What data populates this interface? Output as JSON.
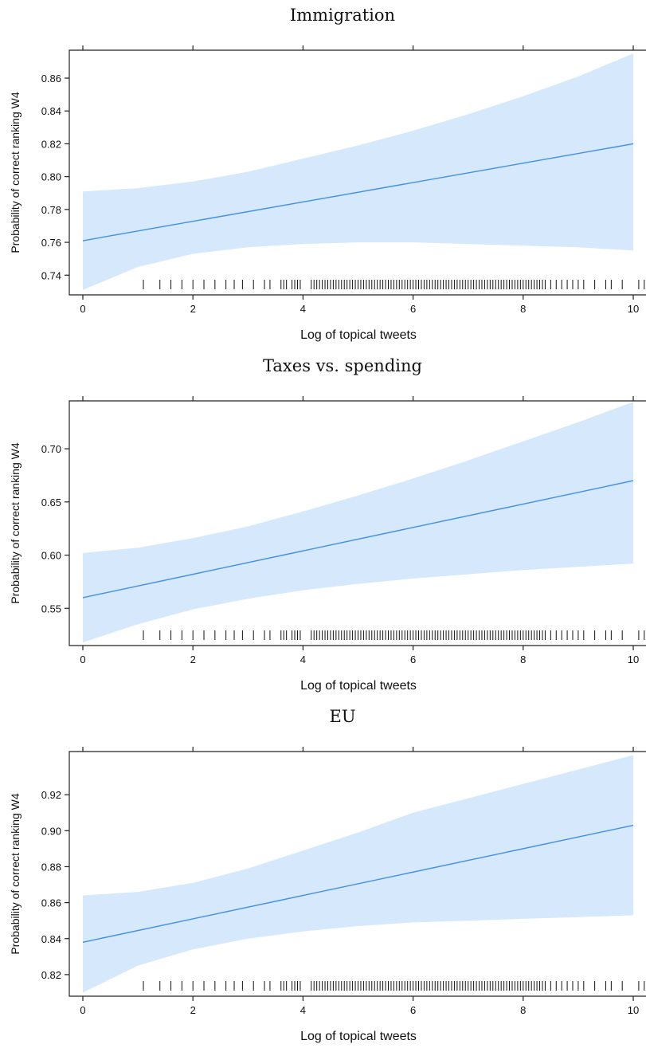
{
  "chart_data": [
    {
      "type": "line",
      "title": "Immigration",
      "xlabel": "Log of topical tweets",
      "ylabel": "Probability of correct ranking W4",
      "xlim": [
        0,
        10
      ],
      "ylim": [
        0.728,
        0.877
      ],
      "xticks": [
        0,
        2,
        4,
        6,
        8,
        10
      ],
      "yticks": [
        0.74,
        0.76,
        0.78,
        0.8,
        0.82,
        0.84,
        0.86
      ],
      "ytick_labels": [
        "0.74",
        "0.76",
        "0.78",
        "0.80",
        "0.82",
        "0.84",
        "0.86"
      ],
      "fit": {
        "x": [
          0,
          10
        ],
        "y": [
          0.761,
          0.82
        ]
      },
      "band": {
        "x": [
          0,
          1,
          2,
          3,
          4,
          5,
          6,
          7,
          8,
          9,
          10
        ],
        "lower": [
          0.731,
          0.745,
          0.753,
          0.757,
          0.759,
          0.76,
          0.76,
          0.759,
          0.758,
          0.757,
          0.755
        ],
        "upper": [
          0.791,
          0.793,
          0.797,
          0.803,
          0.811,
          0.819,
          0.828,
          0.838,
          0.849,
          0.861,
          0.875
        ]
      },
      "rug": [
        1.1,
        1.4,
        1.6,
        1.8,
        2.0,
        2.2,
        2.4,
        2.6,
        2.75,
        2.9,
        3.1,
        3.3,
        3.4,
        3.6,
        3.65,
        3.7,
        3.8,
        3.85,
        3.9,
        3.95,
        4.15,
        4.2,
        4.25,
        4.3,
        4.35,
        4.4,
        4.45,
        4.5,
        4.55,
        4.6,
        4.65,
        4.7,
        4.75,
        4.8,
        4.85,
        4.9,
        4.95,
        5.0,
        5.05,
        5.1,
        5.15,
        5.2,
        5.25,
        5.3,
        5.35,
        5.4,
        5.45,
        5.5,
        5.55,
        5.6,
        5.65,
        5.7,
        5.75,
        5.8,
        5.85,
        5.9,
        5.95,
        6.0,
        6.05,
        6.1,
        6.15,
        6.2,
        6.25,
        6.3,
        6.35,
        6.4,
        6.45,
        6.5,
        6.55,
        6.6,
        6.65,
        6.7,
        6.75,
        6.8,
        6.85,
        6.9,
        6.95,
        7.0,
        7.05,
        7.1,
        7.15,
        7.2,
        7.25,
        7.3,
        7.35,
        7.4,
        7.45,
        7.5,
        7.55,
        7.6,
        7.65,
        7.7,
        7.75,
        7.8,
        7.85,
        7.9,
        7.95,
        8.0,
        8.05,
        8.1,
        8.15,
        8.2,
        8.25,
        8.3,
        8.35,
        8.4,
        8.5,
        8.6,
        8.7,
        8.8,
        8.9,
        9.0,
        9.1,
        9.3,
        9.5,
        9.6,
        9.8,
        10.1,
        10.2
      ]
    },
    {
      "type": "line",
      "title": "Taxes vs. spending",
      "xlabel": "Log of topical tweets",
      "ylabel": "Probability of correct ranking W4",
      "xlim": [
        0,
        10
      ],
      "ylim": [
        0.515,
        0.745
      ],
      "xticks": [
        0,
        2,
        4,
        6,
        8,
        10
      ],
      "yticks": [
        0.55,
        0.6,
        0.65,
        0.7
      ],
      "ytick_labels": [
        "0.55",
        "0.60",
        "0.65",
        "0.70"
      ],
      "fit": {
        "x": [
          0,
          10
        ],
        "y": [
          0.56,
          0.67
        ]
      },
      "band": {
        "x": [
          0,
          1,
          2,
          3,
          4,
          5,
          6,
          7,
          8,
          9,
          10
        ],
        "lower": [
          0.518,
          0.535,
          0.549,
          0.559,
          0.567,
          0.573,
          0.578,
          0.582,
          0.586,
          0.589,
          0.592
        ],
        "upper": [
          0.602,
          0.607,
          0.616,
          0.627,
          0.641,
          0.656,
          0.672,
          0.689,
          0.707,
          0.725,
          0.744
        ]
      },
      "rug": [
        1.1,
        1.4,
        1.6,
        1.8,
        2.0,
        2.2,
        2.4,
        2.6,
        2.75,
        2.9,
        3.1,
        3.3,
        3.4,
        3.6,
        3.65,
        3.7,
        3.8,
        3.85,
        3.9,
        3.95,
        4.15,
        4.2,
        4.25,
        4.3,
        4.35,
        4.4,
        4.45,
        4.5,
        4.55,
        4.6,
        4.65,
        4.7,
        4.75,
        4.8,
        4.85,
        4.9,
        4.95,
        5.0,
        5.05,
        5.1,
        5.15,
        5.2,
        5.25,
        5.3,
        5.35,
        5.4,
        5.45,
        5.5,
        5.55,
        5.6,
        5.65,
        5.7,
        5.75,
        5.8,
        5.85,
        5.9,
        5.95,
        6.0,
        6.05,
        6.1,
        6.15,
        6.2,
        6.25,
        6.3,
        6.35,
        6.4,
        6.45,
        6.5,
        6.55,
        6.6,
        6.65,
        6.7,
        6.75,
        6.8,
        6.85,
        6.9,
        6.95,
        7.0,
        7.05,
        7.1,
        7.15,
        7.2,
        7.25,
        7.3,
        7.35,
        7.4,
        7.45,
        7.5,
        7.55,
        7.6,
        7.65,
        7.7,
        7.75,
        7.8,
        7.85,
        7.9,
        7.95,
        8.0,
        8.05,
        8.1,
        8.15,
        8.2,
        8.25,
        8.3,
        8.35,
        8.4,
        8.5,
        8.6,
        8.7,
        8.8,
        8.9,
        9.0,
        9.1,
        9.3,
        9.5,
        9.6,
        9.8,
        10.1,
        10.2
      ]
    },
    {
      "type": "line",
      "title": "EU",
      "xlabel": "Log of topical tweets",
      "ylabel": "Probability of correct ranking W4",
      "xlim": [
        0,
        10
      ],
      "ylim": [
        0.808,
        0.944
      ],
      "xticks": [
        0,
        2,
        4,
        6,
        8,
        10
      ],
      "yticks": [
        0.82,
        0.84,
        0.86,
        0.88,
        0.9,
        0.92
      ],
      "ytick_labels": [
        "0.82",
        "0.84",
        "0.86",
        "0.88",
        "0.90",
        "0.92"
      ],
      "fit": {
        "x": [
          0,
          10
        ],
        "y": [
          0.838,
          0.903
        ]
      },
      "band": {
        "x": [
          0,
          1,
          2,
          3,
          4,
          5,
          6,
          7,
          8,
          9,
          10
        ],
        "lower": [
          0.81,
          0.825,
          0.834,
          0.84,
          0.844,
          0.847,
          0.849,
          0.85,
          0.851,
          0.852,
          0.853
        ],
        "upper": [
          0.864,
          0.866,
          0.871,
          0.879,
          0.889,
          0.899,
          0.91,
          0.918,
          0.926,
          0.934,
          0.942
        ]
      },
      "rug": [
        1.1,
        1.4,
        1.6,
        1.8,
        2.0,
        2.2,
        2.4,
        2.6,
        2.75,
        2.9,
        3.1,
        3.3,
        3.4,
        3.6,
        3.65,
        3.7,
        3.8,
        3.85,
        3.9,
        3.95,
        4.15,
        4.2,
        4.25,
        4.3,
        4.35,
        4.4,
        4.45,
        4.5,
        4.55,
        4.6,
        4.65,
        4.7,
        4.75,
        4.8,
        4.85,
        4.9,
        4.95,
        5.0,
        5.05,
        5.1,
        5.15,
        5.2,
        5.25,
        5.3,
        5.35,
        5.4,
        5.45,
        5.5,
        5.55,
        5.6,
        5.65,
        5.7,
        5.75,
        5.8,
        5.85,
        5.9,
        5.95,
        6.0,
        6.05,
        6.1,
        6.15,
        6.2,
        6.25,
        6.3,
        6.35,
        6.4,
        6.45,
        6.5,
        6.55,
        6.6,
        6.65,
        6.7,
        6.75,
        6.8,
        6.85,
        6.9,
        6.95,
        7.0,
        7.05,
        7.1,
        7.15,
        7.2,
        7.25,
        7.3,
        7.35,
        7.4,
        7.45,
        7.5,
        7.55,
        7.6,
        7.65,
        7.7,
        7.75,
        7.8,
        7.85,
        7.9,
        7.95,
        8.0,
        8.05,
        8.1,
        8.15,
        8.2,
        8.25,
        8.3,
        8.35,
        8.4,
        8.5,
        8.6,
        8.7,
        8.8,
        8.9,
        9.0,
        9.1,
        9.3,
        9.5,
        9.6,
        9.8,
        10.1,
        10.2
      ]
    }
  ],
  "colors": {
    "band": "#d6e8fb",
    "line": "#3f8fe6",
    "axis": "#222222"
  }
}
